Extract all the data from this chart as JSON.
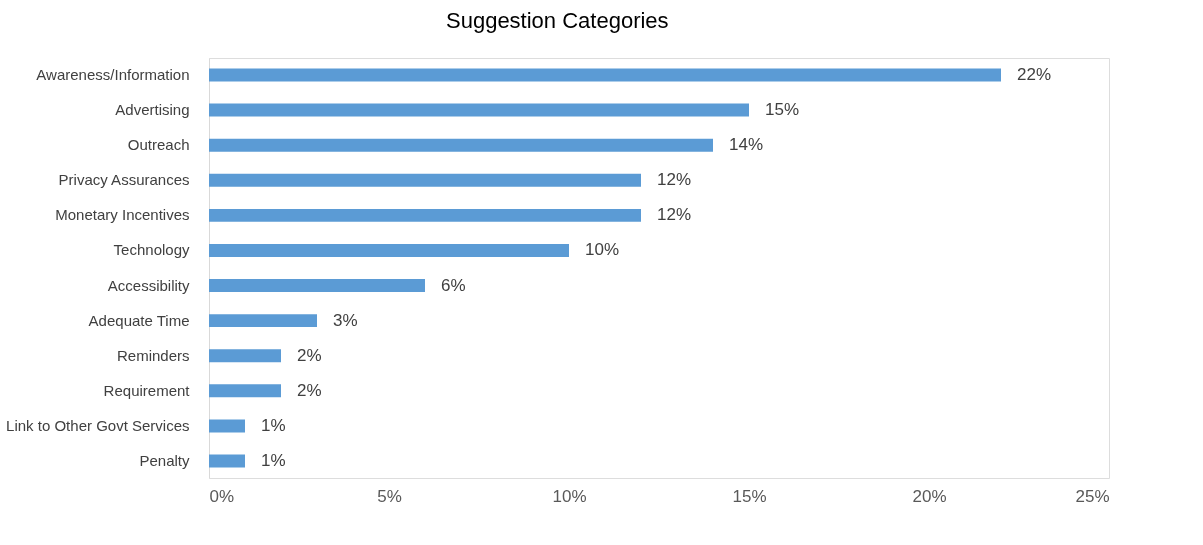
{
  "chart_data": {
    "type": "bar",
    "orientation": "horizontal",
    "title": "Suggestion Categories",
    "categories": [
      "Awareness/Information",
      "Advertising",
      "Outreach",
      "Privacy Assurances",
      "Monetary Incentives",
      "Technology",
      "Accessibility",
      "Adequate Time",
      "Reminders",
      "Requirement",
      "Link to Other Govt Services",
      "Penalty"
    ],
    "values": [
      22,
      15,
      14,
      12,
      12,
      10,
      6,
      3,
      2,
      2,
      1,
      1
    ],
    "value_labels": [
      "22%",
      "15%",
      "14%",
      "12%",
      "12%",
      "10%",
      "6%",
      "3%",
      "2%",
      "2%",
      "1%",
      "1%"
    ],
    "color": "#5b9bd5",
    "xlim": [
      0,
      25
    ],
    "xticks": [
      {
        "value": 0,
        "label": "0%"
      },
      {
        "value": 5,
        "label": "5%"
      },
      {
        "value": 10,
        "label": "10%"
      },
      {
        "value": 15,
        "label": "15%"
      },
      {
        "value": 20,
        "label": "20%"
      },
      {
        "value": 25,
        "label": "25%"
      }
    ],
    "grid": false
  }
}
